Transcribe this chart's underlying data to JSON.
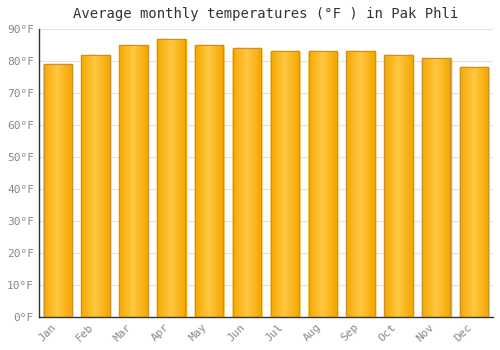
{
  "months": [
    "Jan",
    "Feb",
    "Mar",
    "Apr",
    "May",
    "Jun",
    "Jul",
    "Aug",
    "Sep",
    "Oct",
    "Nov",
    "Dec"
  ],
  "values": [
    79,
    82,
    85,
    87,
    85,
    84,
    83,
    83,
    83,
    82,
    81,
    78
  ],
  "title": "Average monthly temperatures (°F ) in Pak Phli",
  "ylim": [
    0,
    90
  ],
  "yticks": [
    0,
    10,
    20,
    30,
    40,
    50,
    60,
    70,
    80,
    90
  ],
  "ytick_labels": [
    "0°F",
    "10°F",
    "20°F",
    "30°F",
    "40°F",
    "50°F",
    "60°F",
    "70°F",
    "80°F",
    "90°F"
  ],
  "bar_color_center": "#FFC844",
  "bar_color_edge": "#F5A800",
  "bar_edge_color": "#C8922A",
  "background_color": "#FFFFFF",
  "grid_color": "#E0E0E8",
  "title_fontsize": 10,
  "tick_fontsize": 8,
  "bar_width": 0.75
}
